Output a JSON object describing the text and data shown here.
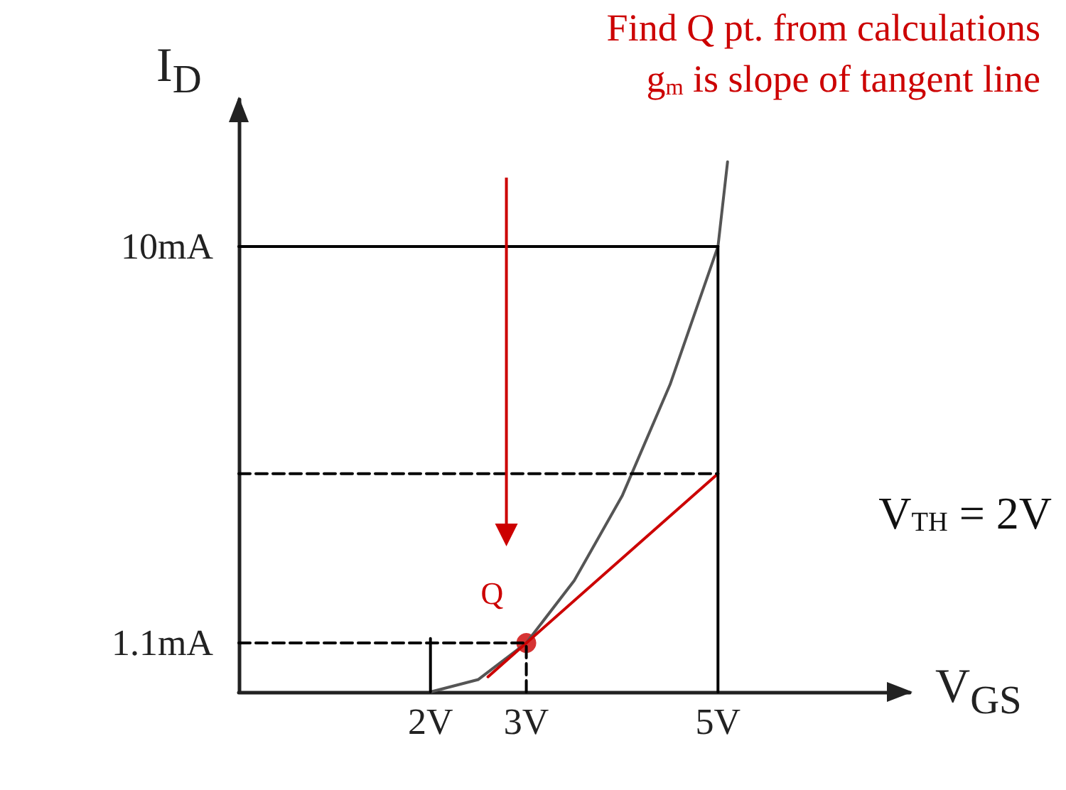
{
  "chart_data": {
    "type": "line",
    "xlabel": "V$_{GS}$",
    "ylabel": "I$_{D}$",
    "xlim": [
      0,
      7
    ],
    "ylim": [
      0,
      13.3
    ],
    "xticks": [
      {
        "value": 2,
        "label": "2V"
      },
      {
        "value": 3,
        "label": "3V"
      },
      {
        "value": 5,
        "label": "5V"
      }
    ],
    "yticks": [
      {
        "value": 1.1,
        "label": "1.1mA"
      },
      {
        "value": 10,
        "label": "10mA"
      }
    ],
    "grid": false,
    "marker": "none",
    "line_style": "solid",
    "series": [
      {
        "type": "line",
        "color": "#555555",
        "x": [
          2,
          2.5,
          3,
          3.5,
          4,
          4.5,
          5,
          5.1
        ],
        "values": [
          0,
          0.28,
          1.1,
          2.5,
          4.4,
          6.9,
          10,
          11.9
        ]
      },
      {
        "type": "line",
        "color": "#cc0000",
        "x": [
          2.6,
          5
        ],
        "values": [
          0.34,
          4.9
        ]
      },
      {
        "type": "line",
        "color": "#000000",
        "x": [
          0,
          5
        ],
        "values": [
          10,
          10
        ]
      },
      {
        "type": "line",
        "color": "#000000",
        "x": [
          5,
          5
        ],
        "values": [
          0,
          10
        ]
      },
      {
        "type": "line",
        "color": "#000000",
        "x": [
          2,
          2
        ],
        "values": [
          0,
          1.2
        ]
      },
      {
        "type": "line",
        "color": "#000000",
        "line_style": "dashed",
        "x": [
          0,
          5
        ],
        "values": [
          4.9,
          4.9
        ]
      },
      {
        "type": "line",
        "color": "#000000",
        "line_style": "dashed",
        "x": [
          0,
          3
        ],
        "values": [
          1.1,
          1.1
        ]
      },
      {
        "type": "line",
        "color": "#000000",
        "line_style": "dashed",
        "x": [
          3,
          3
        ],
        "values": [
          0,
          1.1
        ]
      },
      {
        "type": "scatter",
        "color": "#cc0000",
        "marker": "circle",
        "x": [
          3
        ],
        "values": [
          1.1
        ]
      }
    ],
    "annotations": [
      "Find Q pt. from calculations",
      "g$_{m}$ is slope of tangent line",
      "V$_{TH}$ = 2V",
      {
        "text": "Q",
        "x": 3,
        "y": 1.1
      }
    ]
  }
}
